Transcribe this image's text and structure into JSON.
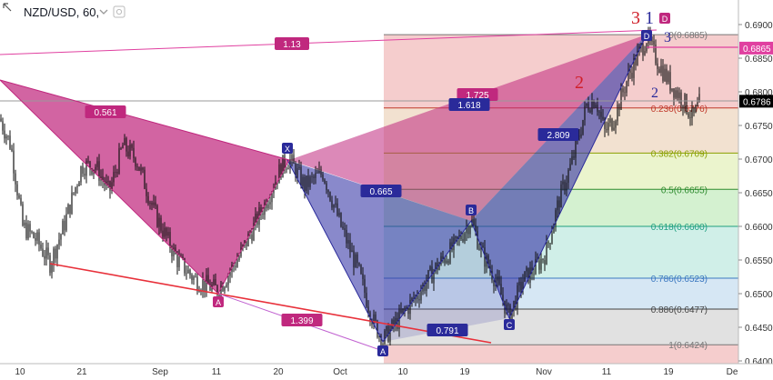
{
  "header": {
    "symbol_label": "NZD/USD, 60,",
    "dropdown_icon": "chevron-down-icon",
    "settings_icon": "gear-icon"
  },
  "chart_data": {
    "type": "candlestick",
    "instrument": "NZD/USD",
    "interval": "60",
    "y_range": [
      0.64,
      0.692
    ],
    "x_ticks": [
      "10",
      "21",
      "Sep",
      "11",
      "20",
      "Oct",
      "10",
      "19",
      "Nov",
      "11",
      "19",
      "De"
    ],
    "y_ticks": [
      "0.6900",
      "0.6850",
      "0.6800",
      "0.6750",
      "0.6700",
      "0.6650",
      "0.6600",
      "0.6550",
      "0.6500",
      "0.6450",
      "0.6400"
    ],
    "price_labels": [
      {
        "value": 0.6865,
        "text": "0.6865",
        "color": "#e040a0",
        "text_color": "#ffffff"
      },
      {
        "value": 0.6786,
        "text": "0.6786",
        "color": "#000000",
        "text_color": "#ffffff"
      }
    ],
    "fib_levels": [
      {
        "ratio": "0",
        "price": 0.6885,
        "label": "0(0.6885)",
        "fill": "#f3c4c4",
        "color": "#777777"
      },
      {
        "ratio": "0.236",
        "price": 0.6776,
        "label": "0.236(0.6776)",
        "fill": "#f0dcc8",
        "color": "#c0392b"
      },
      {
        "ratio": "0.382",
        "price": 0.6709,
        "label": "0.382(0.6709)",
        "fill": "#e8f2c4",
        "color": "#8aa000"
      },
      {
        "ratio": "0.5",
        "price": 0.6655,
        "label": "0.5(0.6655)",
        "fill": "#cdeec8",
        "color": "#2e8b2e"
      },
      {
        "ratio": "0.618",
        "price": 0.66,
        "label": "0.618(0.6600)",
        "fill": "#c8ece4",
        "color": "#20a080"
      },
      {
        "ratio": "0.786",
        "price": 0.6523,
        "label": "0.786(0.6523)",
        "fill": "#cfe3f2",
        "color": "#3a78c0"
      },
      {
        "ratio": "0.886",
        "price": 0.6477,
        "label": "0.886(0.6477)",
        "fill": "#dcdcdc",
        "color": "#444444"
      },
      {
        "ratio": "1",
        "price": 0.6424,
        "label": "1(0.6424)",
        "fill": "#f3c4c4",
        "color": "#777777"
      }
    ],
    "pattern_points": [
      {
        "name": "X",
        "price": 0.67
      },
      {
        "name": "A",
        "price": 0.6424
      },
      {
        "name": "B",
        "price": 0.661
      },
      {
        "name": "C",
        "price": 0.6465
      },
      {
        "name": "D",
        "price": 0.6885
      }
    ],
    "left_pattern_points": [
      {
        "name": "A",
        "price": 0.6505
      }
    ],
    "ratio_labels": [
      "1.13",
      "0.561",
      "1.725",
      "1.618",
      "2.809",
      "0.665",
      "1.399",
      "0.791"
    ],
    "wave_labels": [
      {
        "text": "3",
        "color": "#d0202a"
      },
      {
        "text": "1",
        "color": "#2a2a9a"
      },
      {
        "text": "D",
        "color": "#ffffff"
      },
      {
        "text": "2",
        "color": "#d0202a"
      },
      {
        "text": "2",
        "color": "#2a2a9a"
      },
      {
        "text": "3",
        "color": "#2a2a9a"
      }
    ],
    "colors": {
      "magenta": "#c0287e",
      "indigo": "#2a2a9a",
      "blue": "#3a3aa8",
      "red": "#e8303a",
      "pink_line": "#e040a0",
      "violet_line": "#c060d0"
    }
  }
}
